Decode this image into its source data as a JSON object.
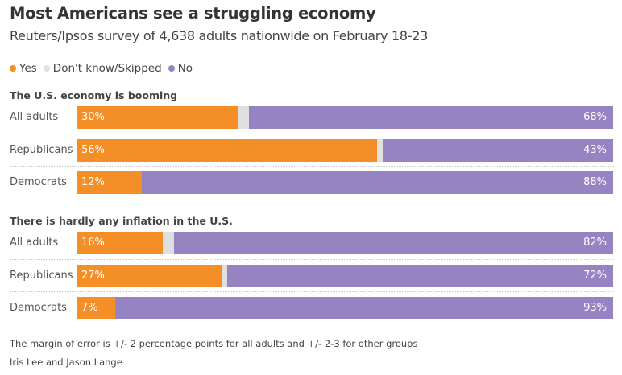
{
  "title": "Most Americans see a struggling economy",
  "subtitle": "Reuters/Ipsos survey of 4,638 adults nationwide on February 18-23",
  "colors": {
    "yes": "#f48f27",
    "dk": "#e0e0e0",
    "no": "#9683c1"
  },
  "legend": [
    "Yes",
    "Don't know/Skipped",
    "No"
  ],
  "chart_data": {
    "type": "bar",
    "orientation": "horizontal-stacked",
    "title": "Most Americans see a struggling economy",
    "subtitle": "Reuters/Ipsos survey of 4,638 adults nationwide on February 18-23",
    "series_names": [
      "Yes",
      "Don't know/Skipped",
      "No"
    ],
    "xlim": [
      0,
      100
    ],
    "groups": [
      {
        "title": "The U.S. economy is booming",
        "rows": [
          {
            "label": "All adults",
            "yes": 30,
            "dk": 2,
            "no": 68
          },
          {
            "label": "Republicans",
            "yes": 56,
            "dk": 1,
            "no": 43
          },
          {
            "label": "Democrats",
            "yes": 12,
            "dk": 0,
            "no": 88
          }
        ]
      },
      {
        "title": "There is hardly any inflation in the U.S.",
        "rows": [
          {
            "label": "All adults",
            "yes": 16,
            "dk": 2,
            "no": 82
          },
          {
            "label": "Republicans",
            "yes": 27,
            "dk": 1,
            "no": 72
          },
          {
            "label": "Democrats",
            "yes": 7,
            "dk": 0,
            "no": 93
          }
        ]
      }
    ]
  },
  "footer": {
    "note": "The margin of error is +/- 2 percentage points for all adults and +/- 2-3 for other groups",
    "byline": "Iris Lee and Jason Lange"
  }
}
